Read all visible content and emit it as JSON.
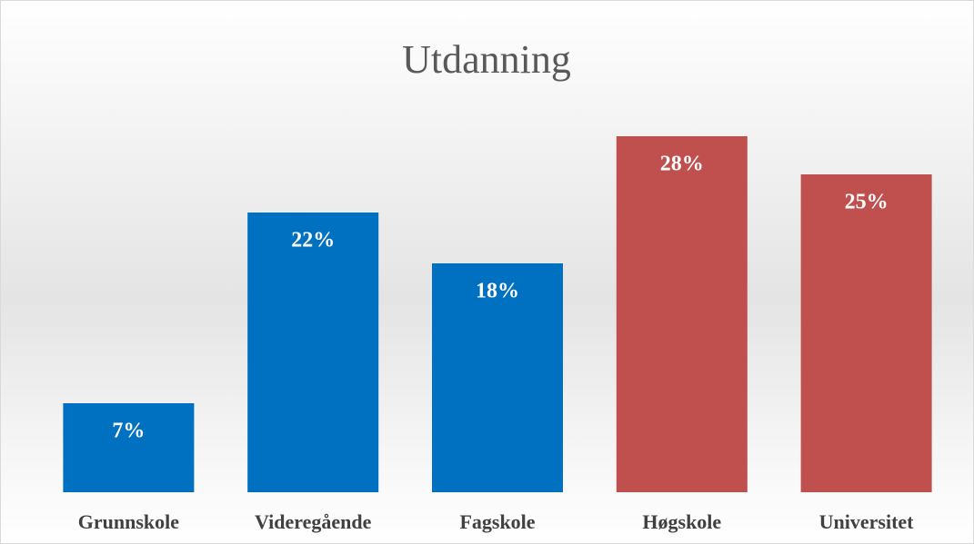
{
  "chart_data": {
    "type": "bar",
    "title": "Utdanning",
    "categories": [
      "Grunnskole",
      "Videregående",
      "Fagskole",
      "Høgskole",
      "Universitet"
    ],
    "values": [
      7,
      22,
      18,
      28,
      25
    ],
    "value_labels": [
      "7%",
      "22%",
      "18%",
      "28%",
      "25%"
    ],
    "colors": [
      "#0070c0",
      "#0070c0",
      "#0070c0",
      "#c0504d",
      "#c0504d"
    ]
  }
}
